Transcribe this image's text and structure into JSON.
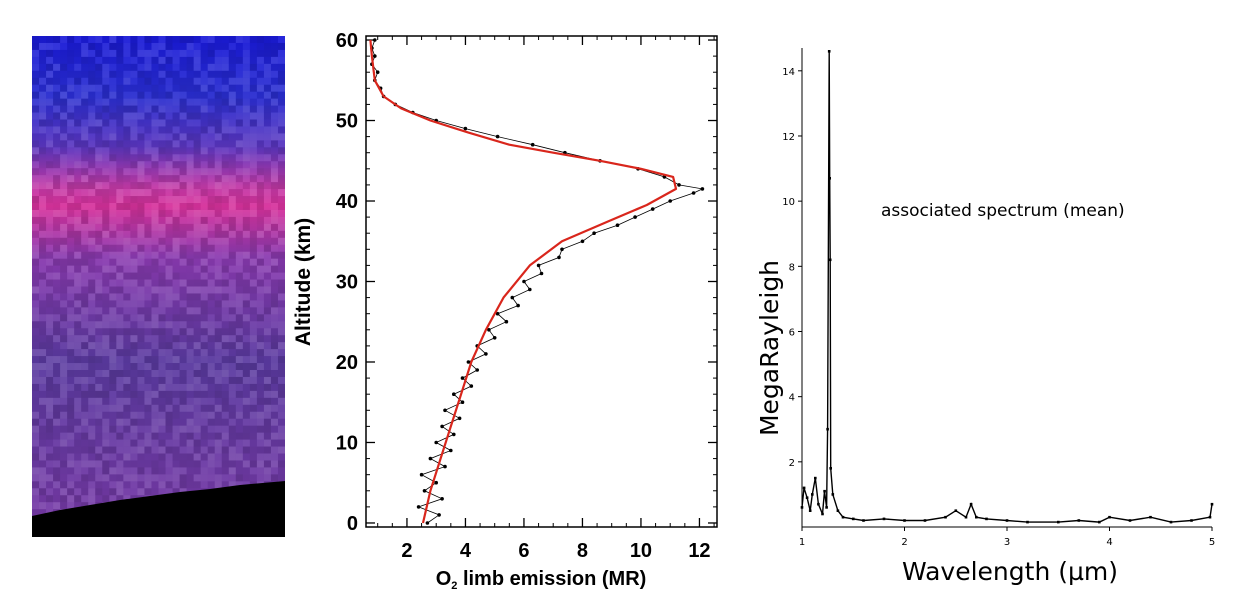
{
  "image_panel": {
    "colors": {
      "sky_top": "#1a1ad8",
      "band": "#d8329c",
      "lower": "#5a3aa0",
      "ground": "#000000"
    }
  },
  "chart_data": [
    {
      "type": "scatter",
      "title": "",
      "xlabel_prefix": "O",
      "xlabel_sub": "2",
      "xlabel_suffix": " limb emission (MR)",
      "ylabel": "Altitude (km)",
      "xlim": [
        0.6,
        12.6
      ],
      "ylim": [
        -0.5,
        60.5
      ],
      "xticks": [
        2,
        4,
        6,
        8,
        10,
        12
      ],
      "yticks": [
        0,
        10,
        20,
        30,
        40,
        50,
        60
      ],
      "xtick_labels": [
        "2",
        "4",
        "6",
        "8",
        "10",
        "12"
      ],
      "ytick_labels": [
        "0",
        "10",
        "20",
        "30",
        "40",
        "50",
        "60"
      ],
      "grid": false,
      "series": [
        {
          "style": "scatter",
          "color": "#000000",
          "points": [
            [
              2.7,
              0
            ],
            [
              3.1,
              1
            ],
            [
              2.4,
              2
            ],
            [
              3.2,
              3
            ],
            [
              2.6,
              4
            ],
            [
              3.0,
              5
            ],
            [
              2.5,
              6
            ],
            [
              3.3,
              7
            ],
            [
              2.8,
              8
            ],
            [
              3.5,
              9
            ],
            [
              3.0,
              10
            ],
            [
              3.6,
              11
            ],
            [
              3.2,
              12
            ],
            [
              3.8,
              13
            ],
            [
              3.3,
              14
            ],
            [
              3.9,
              15
            ],
            [
              3.6,
              16
            ],
            [
              4.2,
              17
            ],
            [
              3.9,
              18
            ],
            [
              4.4,
              19
            ],
            [
              4.1,
              20
            ],
            [
              4.7,
              21
            ],
            [
              4.4,
              22
            ],
            [
              5.0,
              23
            ],
            [
              4.8,
              24
            ],
            [
              5.4,
              25
            ],
            [
              5.1,
              26
            ],
            [
              5.8,
              27
            ],
            [
              5.6,
              28
            ],
            [
              6.2,
              29
            ],
            [
              6.0,
              30
            ],
            [
              6.6,
              31
            ],
            [
              6.5,
              32
            ],
            [
              7.2,
              33
            ],
            [
              7.3,
              34
            ],
            [
              8.0,
              35
            ],
            [
              8.4,
              36
            ],
            [
              9.2,
              37
            ],
            [
              9.8,
              38
            ],
            [
              10.4,
              39
            ],
            [
              11.0,
              40
            ],
            [
              11.8,
              41
            ],
            [
              12.1,
              41.5
            ],
            [
              11.3,
              42
            ],
            [
              10.8,
              43
            ],
            [
              9.9,
              44
            ],
            [
              8.6,
              45
            ],
            [
              7.4,
              46
            ],
            [
              6.3,
              47
            ],
            [
              5.1,
              48
            ],
            [
              4.0,
              49
            ],
            [
              3.0,
              50
            ],
            [
              2.2,
              51
            ],
            [
              1.6,
              52
            ],
            [
              1.2,
              53
            ],
            [
              1.1,
              54
            ],
            [
              0.9,
              55
            ],
            [
              1.0,
              56
            ],
            [
              0.8,
              57
            ],
            [
              0.9,
              58
            ],
            [
              0.8,
              59
            ],
            [
              0.9,
              60
            ]
          ]
        },
        {
          "style": "line",
          "color": "#d9261c",
          "points": [
            [
              2.55,
              0
            ],
            [
              2.8,
              4
            ],
            [
              3.15,
              8
            ],
            [
              3.5,
              12
            ],
            [
              3.85,
              16
            ],
            [
              4.2,
              20
            ],
            [
              4.7,
              24
            ],
            [
              5.3,
              28
            ],
            [
              6.2,
              32
            ],
            [
              7.3,
              35
            ],
            [
              8.9,
              37.5
            ],
            [
              10.2,
              39.5
            ],
            [
              11.2,
              41.5
            ],
            [
              11.1,
              43
            ],
            [
              10.0,
              44
            ],
            [
              8.6,
              45
            ],
            [
              7.0,
              46
            ],
            [
              5.5,
              47
            ],
            [
              4.1,
              48.5
            ],
            [
              2.8,
              50
            ],
            [
              1.8,
              51.5
            ],
            [
              1.2,
              53
            ],
            [
              0.9,
              55
            ],
            [
              0.8,
              58
            ],
            [
              0.75,
              60
            ]
          ]
        }
      ]
    },
    {
      "type": "line",
      "title": "",
      "annotation": "associated spectrum (mean)",
      "xlabel": "Wavelength (µm)",
      "ylabel": "MegaRayleigh",
      "xlim": [
        1,
        5
      ],
      "ylim": [
        0,
        14.7
      ],
      "xticks": [
        1,
        2,
        3,
        4,
        5
      ],
      "yticks": [
        2,
        4,
        6,
        8,
        10,
        12,
        14
      ],
      "xtick_labels": [
        "1",
        "2",
        "3",
        "4",
        "5"
      ],
      "ytick_labels": [
        "2",
        "4",
        "6",
        "8",
        "10",
        "12",
        "14"
      ],
      "grid": false,
      "series": [
        {
          "color": "#000000",
          "points": [
            [
              1.0,
              0.6
            ],
            [
              1.02,
              1.2
            ],
            [
              1.05,
              0.9
            ],
            [
              1.08,
              0.5
            ],
            [
              1.1,
              1.0
            ],
            [
              1.13,
              1.5
            ],
            [
              1.16,
              0.7
            ],
            [
              1.2,
              0.4
            ],
            [
              1.22,
              1.1
            ],
            [
              1.24,
              0.6
            ],
            [
              1.25,
              3.0
            ],
            [
              1.265,
              14.6
            ],
            [
              1.27,
              10.7
            ],
            [
              1.275,
              8.2
            ],
            [
              1.28,
              1.8
            ],
            [
              1.3,
              1.0
            ],
            [
              1.35,
              0.5
            ],
            [
              1.4,
              0.3
            ],
            [
              1.5,
              0.25
            ],
            [
              1.6,
              0.2
            ],
            [
              1.8,
              0.25
            ],
            [
              2.0,
              0.2
            ],
            [
              2.2,
              0.2
            ],
            [
              2.4,
              0.3
            ],
            [
              2.5,
              0.5
            ],
            [
              2.6,
              0.3
            ],
            [
              2.65,
              0.7
            ],
            [
              2.7,
              0.3
            ],
            [
              2.8,
              0.25
            ],
            [
              3.0,
              0.2
            ],
            [
              3.2,
              0.15
            ],
            [
              3.5,
              0.15
            ],
            [
              3.7,
              0.2
            ],
            [
              3.9,
              0.15
            ],
            [
              4.0,
              0.3
            ],
            [
              4.2,
              0.2
            ],
            [
              4.4,
              0.3
            ],
            [
              4.6,
              0.15
            ],
            [
              4.8,
              0.2
            ],
            [
              4.98,
              0.3
            ],
            [
              5.0,
              0.7
            ]
          ]
        }
      ]
    }
  ]
}
